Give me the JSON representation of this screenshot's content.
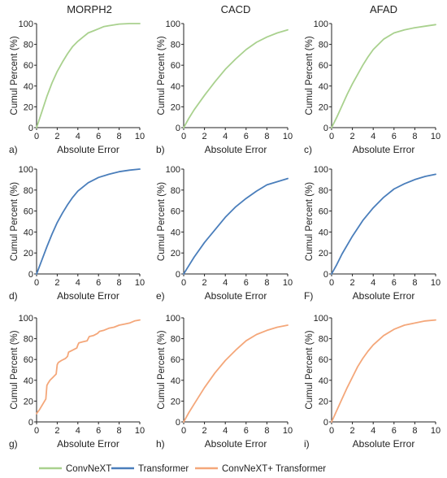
{
  "column_titles": [
    "MORPH2",
    "CACD",
    "AFAD"
  ],
  "legend": [
    {
      "name": "ConvNeXT",
      "color": "#a9d18e"
    },
    {
      "name": "Transformer",
      "color": "#4a7ebb"
    },
    {
      "name": "ConvNeXT+ Transformer",
      "color": "#f4a77a"
    }
  ],
  "chart_data": [
    {
      "type": "line",
      "panel_label": "a)",
      "xlabel": "Absolute Error",
      "ylabel": "Cumul Percent (%)",
      "xlim": [
        0,
        10
      ],
      "ylim": [
        0,
        100
      ],
      "xticks": [
        0,
        2,
        4,
        6,
        8,
        10
      ],
      "yticks": [
        0,
        20,
        40,
        60,
        80,
        100
      ],
      "color": "#a9d18e",
      "x": [
        0,
        0.5,
        1,
        1.5,
        2,
        2.5,
        3,
        3.5,
        4,
        4.5,
        5,
        5.5,
        6,
        6.5,
        7,
        8,
        9,
        10
      ],
      "y": [
        0,
        15,
        30,
        43,
        54,
        63,
        71,
        78,
        83,
        87,
        91,
        93,
        95,
        97,
        98,
        99.5,
        100,
        100
      ]
    },
    {
      "type": "line",
      "panel_label": "b)",
      "xlabel": "Absolute Error",
      "ylabel": "Cumul Percent (%)",
      "xlim": [
        0,
        10
      ],
      "ylim": [
        0,
        100
      ],
      "xticks": [
        0,
        2,
        4,
        6,
        8,
        10
      ],
      "yticks": [
        0,
        20,
        40,
        60,
        80,
        100
      ],
      "color": "#a9d18e",
      "x": [
        0,
        0.5,
        1,
        2,
        3,
        4,
        5,
        6,
        7,
        8,
        9,
        10
      ],
      "y": [
        0,
        9,
        17,
        31,
        44,
        56,
        66,
        75,
        82,
        87,
        91,
        94
      ]
    },
    {
      "type": "line",
      "panel_label": "c)",
      "xlabel": "Absolute Error",
      "ylabel": "Cumul Percent (%)",
      "xlim": [
        0,
        10
      ],
      "ylim": [
        0,
        100
      ],
      "xticks": [
        0,
        2,
        4,
        6,
        8,
        10
      ],
      "yticks": [
        0,
        20,
        40,
        60,
        80,
        100
      ],
      "color": "#a9d18e",
      "x": [
        0,
        0.5,
        1,
        1.5,
        2,
        2.5,
        3,
        3.5,
        4,
        5,
        6,
        7,
        8,
        9,
        10
      ],
      "y": [
        0,
        10,
        21,
        32,
        42,
        51,
        60,
        68,
        75,
        85,
        91,
        94,
        96,
        97.5,
        99
      ]
    },
    {
      "type": "line",
      "panel_label": "d)",
      "xlabel": "Absolute Error",
      "ylabel": "Cumul Percent (%)",
      "xlim": [
        0,
        10
      ],
      "ylim": [
        0,
        100
      ],
      "xticks": [
        0,
        2,
        4,
        6,
        8,
        10
      ],
      "yticks": [
        0,
        20,
        40,
        60,
        80,
        100
      ],
      "color": "#4a7ebb",
      "x": [
        0,
        0.5,
        1,
        1.5,
        2,
        2.5,
        3,
        3.5,
        4,
        5,
        6,
        7,
        8,
        9,
        10
      ],
      "y": [
        0,
        13,
        26,
        38,
        49,
        58,
        66,
        73,
        79,
        87,
        92,
        95,
        97.5,
        99,
        100
      ]
    },
    {
      "type": "line",
      "panel_label": "e)",
      "xlabel": "Absolute Error",
      "ylabel": "Cumul Percent (%)",
      "xlim": [
        0,
        10
      ],
      "ylim": [
        0,
        100
      ],
      "xticks": [
        0,
        2,
        4,
        6,
        8,
        10
      ],
      "yticks": [
        0,
        20,
        40,
        60,
        80,
        100
      ],
      "color": "#4a7ebb",
      "x": [
        0,
        0.5,
        1,
        2,
        3,
        4,
        5,
        6,
        7,
        8,
        9,
        10
      ],
      "y": [
        0,
        8,
        16,
        30,
        42,
        54,
        64,
        72,
        79,
        85,
        88,
        91
      ]
    },
    {
      "type": "line",
      "panel_label": "F)",
      "xlabel": "Absolute Error",
      "ylabel": "Cumul Percent (%)",
      "xlim": [
        0,
        10
      ],
      "ylim": [
        0,
        100
      ],
      "xticks": [
        0,
        2,
        4,
        6,
        8,
        10
      ],
      "yticks": [
        0,
        20,
        40,
        60,
        80,
        100
      ],
      "color": "#4a7ebb",
      "x": [
        0,
        0.5,
        1,
        2,
        3,
        4,
        5,
        6,
        7,
        8,
        9,
        10
      ],
      "y": [
        0,
        9,
        19,
        36,
        51,
        63,
        73,
        81,
        86,
        90,
        93,
        95
      ]
    },
    {
      "type": "line",
      "panel_label": "g)",
      "xlabel": "Absolute Error",
      "ylabel": "Cumul Percent (%)",
      "xlim": [
        0,
        10
      ],
      "ylim": [
        0,
        100
      ],
      "xticks": [
        0,
        2,
        4,
        6,
        8,
        10
      ],
      "yticks": [
        0,
        20,
        40,
        60,
        80,
        100
      ],
      "color": "#f4a77a",
      "x": [
        0,
        0.3,
        0.6,
        0.9,
        1.0,
        1.1,
        1.3,
        1.6,
        1.9,
        2.0,
        2.1,
        2.4,
        2.8,
        3.0,
        3.1,
        3.5,
        3.9,
        4.0,
        4.1,
        4.5,
        4.9,
        5.0,
        5.1,
        5.5,
        5.9,
        6.0,
        6.1,
        6.5,
        7.0,
        7.5,
        8.0,
        8.5,
        9.0,
        9.5,
        10
      ],
      "y": [
        8,
        12,
        17,
        22,
        35,
        37,
        40,
        43,
        46,
        55,
        57,
        59,
        61,
        63,
        67,
        69,
        71,
        74,
        76,
        77,
        78,
        80,
        82,
        83,
        85,
        86,
        87,
        88,
        90,
        91,
        93,
        94,
        95,
        97,
        98
      ]
    },
    {
      "type": "line",
      "panel_label": "h)",
      "xlabel": "Absolute Error",
      "ylabel": "Cumul Percent (%)",
      "xlim": [
        0,
        10
      ],
      "ylim": [
        0,
        100
      ],
      "xticks": [
        0,
        2,
        4,
        6,
        8,
        10
      ],
      "yticks": [
        0,
        20,
        40,
        60,
        80,
        100
      ],
      "color": "#f4a77a",
      "x": [
        0,
        0.5,
        1,
        2,
        3,
        4,
        5,
        6,
        7,
        8,
        9,
        10
      ],
      "y": [
        0,
        9,
        17,
        33,
        47,
        59,
        69,
        78,
        84,
        88,
        91,
        93
      ]
    },
    {
      "type": "line",
      "panel_label": "i)",
      "xlabel": "Absolute Error",
      "ylabel": "Cumul Percent (%)",
      "xlim": [
        0,
        10
      ],
      "ylim": [
        0,
        100
      ],
      "xticks": [
        0,
        2,
        4,
        6,
        8,
        10
      ],
      "yticks": [
        0,
        20,
        40,
        60,
        80,
        100
      ],
      "color": "#f4a77a",
      "x": [
        0,
        0.5,
        1,
        1.5,
        2,
        2.5,
        3,
        3.5,
        4,
        5,
        6,
        7,
        8,
        9,
        10
      ],
      "y": [
        0,
        11,
        22,
        33,
        43,
        53,
        61,
        68,
        74,
        83,
        89,
        93,
        95,
        97,
        98
      ]
    }
  ]
}
